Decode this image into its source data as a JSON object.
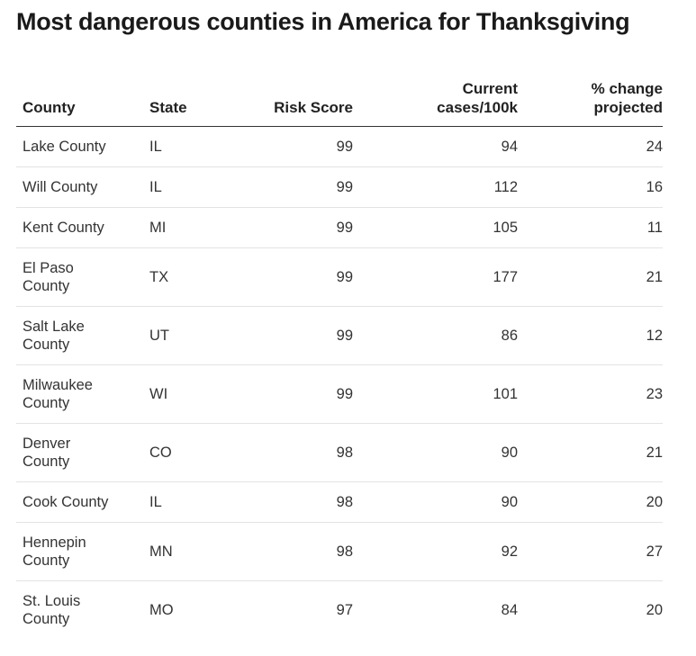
{
  "title": "Most dangerous counties in America for Thanksgiving",
  "chart_data": {
    "type": "table",
    "title": "Most dangerous counties in America for Thanksgiving",
    "columns": [
      "County",
      "State",
      "Risk Score",
      "Current cases/100k",
      "% change projected"
    ],
    "rows": [
      [
        "Lake County",
        "IL",
        99,
        94,
        24
      ],
      [
        "Will County",
        "IL",
        99,
        112,
        16
      ],
      [
        "Kent County",
        "MI",
        99,
        105,
        11
      ],
      [
        "El Paso County",
        "TX",
        99,
        177,
        21
      ],
      [
        "Salt Lake County",
        "UT",
        99,
        86,
        12
      ],
      [
        "Milwaukee County",
        "WI",
        99,
        101,
        23
      ],
      [
        "Denver County",
        "CO",
        98,
        90,
        21
      ],
      [
        "Cook County",
        "IL",
        98,
        90,
        20
      ],
      [
        "Hennepin County",
        "MN",
        98,
        92,
        27
      ],
      [
        "St. Louis County",
        "MO",
        97,
        84,
        20
      ]
    ]
  }
}
